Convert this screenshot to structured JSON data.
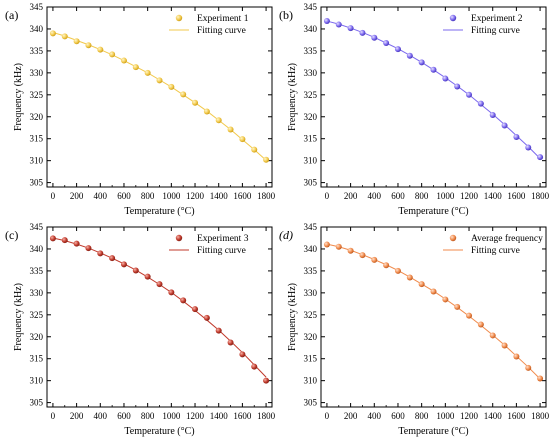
{
  "chart_data": [
    {
      "type": "scatter",
      "panel_label": "(a)",
      "xlabel": "Temperature (°C)",
      "ylabel": "Frequency (kHz)",
      "xlim": [
        -50,
        1850
      ],
      "ylim": [
        304,
        345
      ],
      "xticks": [
        0,
        200,
        400,
        600,
        800,
        1000,
        1200,
        1400,
        1600,
        1800
      ],
      "yticks": [
        305,
        310,
        315,
        320,
        325,
        330,
        335,
        340,
        345
      ],
      "legend_position": "top-right",
      "series": [
        {
          "name": "Experiment 1",
          "kind": "points",
          "color": "#f2c94c",
          "x": [
            0,
            100,
            200,
            300,
            400,
            500,
            600,
            700,
            800,
            900,
            1000,
            1100,
            1200,
            1300,
            1400,
            1500,
            1600,
            1700,
            1800
          ],
          "y": [
            339.0,
            338.3,
            337.2,
            336.3,
            335.3,
            334.2,
            332.8,
            331.3,
            330.0,
            328.3,
            326.8,
            325.1,
            323.2,
            321.2,
            319.2,
            317.1,
            314.9,
            312.5,
            310.2
          ]
        },
        {
          "name": "Fitting curve",
          "kind": "line",
          "color": "#f2c94c",
          "x": [
            0,
            100,
            200,
            300,
            400,
            500,
            600,
            700,
            800,
            900,
            1000,
            1100,
            1200,
            1300,
            1400,
            1500,
            1600,
            1700,
            1800
          ],
          "y": [
            339.2,
            338.4,
            337.4,
            336.4,
            335.3,
            334.1,
            332.8,
            331.4,
            330.0,
            328.4,
            326.8,
            325.0,
            323.2,
            321.3,
            319.2,
            317.1,
            314.8,
            312.5,
            310.1
          ]
        }
      ]
    },
    {
      "type": "scatter",
      "panel_label": "(b)",
      "xlabel": "Temperature (°C)",
      "ylabel": "Frequency (kHz)",
      "xlim": [
        -50,
        1850
      ],
      "ylim": [
        304,
        345
      ],
      "xticks": [
        0,
        200,
        400,
        600,
        800,
        1000,
        1200,
        1400,
        1600,
        1800
      ],
      "yticks": [
        305,
        310,
        315,
        320,
        325,
        330,
        335,
        340,
        345
      ],
      "legend_position": "top-right",
      "series": [
        {
          "name": "Experiment 2",
          "kind": "points",
          "color": "#7b68ee",
          "x": [
            0,
            100,
            200,
            300,
            400,
            500,
            600,
            700,
            800,
            900,
            1000,
            1100,
            1200,
            1300,
            1400,
            1500,
            1600,
            1700,
            1800
          ],
          "y": [
            341.8,
            341.0,
            340.2,
            339.1,
            338.0,
            336.8,
            335.4,
            333.9,
            332.4,
            330.7,
            328.7,
            326.9,
            325.0,
            323.0,
            320.4,
            318.0,
            315.4,
            313.0,
            310.8
          ]
        },
        {
          "name": "Fitting curve",
          "kind": "line",
          "color": "#7b68ee",
          "x": [
            0,
            100,
            200,
            300,
            400,
            500,
            600,
            700,
            800,
            900,
            1000,
            1100,
            1200,
            1300,
            1400,
            1500,
            1600,
            1700,
            1800
          ],
          "y": [
            341.8,
            341.1,
            340.2,
            339.2,
            338.1,
            336.8,
            335.5,
            334.0,
            332.4,
            330.7,
            328.9,
            327.0,
            325.0,
            322.8,
            320.6,
            318.2,
            315.7,
            313.2,
            310.5
          ]
        }
      ]
    },
    {
      "type": "scatter",
      "panel_label": "(c)",
      "xlabel": "Temperature (°C)",
      "ylabel": "Frequency (kHz)",
      "xlim": [
        -50,
        1850
      ],
      "ylim": [
        304,
        345
      ],
      "xticks": [
        0,
        200,
        400,
        600,
        800,
        1000,
        1200,
        1400,
        1600,
        1800
      ],
      "yticks": [
        305,
        310,
        315,
        320,
        325,
        330,
        335,
        340,
        345
      ],
      "legend_position": "top-right",
      "series": [
        {
          "name": "Experiment 3",
          "kind": "points",
          "color": "#c0392b",
          "x": [
            0,
            100,
            200,
            300,
            400,
            500,
            600,
            700,
            800,
            900,
            1000,
            1100,
            1200,
            1300,
            1400,
            1500,
            1600,
            1700,
            1800
          ],
          "y": [
            342.4,
            342.0,
            341.2,
            340.2,
            339.0,
            337.9,
            336.5,
            335.1,
            333.7,
            332.0,
            330.1,
            328.3,
            326.3,
            324.3,
            321.4,
            318.7,
            316.0,
            313.2,
            310.0
          ]
        },
        {
          "name": "Fitting curve",
          "kind": "line",
          "color": "#c0392b",
          "x": [
            0,
            100,
            200,
            300,
            400,
            500,
            600,
            700,
            800,
            900,
            1000,
            1100,
            1200,
            1300,
            1400,
            1500,
            1600,
            1700,
            1800
          ],
          "y": [
            342.5,
            341.9,
            341.1,
            340.2,
            339.1,
            337.9,
            336.6,
            335.2,
            333.6,
            331.9,
            330.1,
            328.1,
            326.0,
            323.8,
            321.5,
            319.0,
            316.4,
            313.6,
            310.8
          ]
        }
      ]
    },
    {
      "type": "scatter",
      "panel_label": "(d)",
      "xlabel": "Temperature (°C)",
      "ylabel": "Frequency (kHz)",
      "xlim": [
        -50,
        1850
      ],
      "ylim": [
        304,
        345
      ],
      "xticks": [
        0,
        200,
        400,
        600,
        800,
        1000,
        1200,
        1400,
        1600,
        1800
      ],
      "yticks": [
        305,
        310,
        315,
        320,
        325,
        330,
        335,
        340,
        345
      ],
      "legend_position": "top-right",
      "series": [
        {
          "name": "Average frequency",
          "kind": "points",
          "color": "#f08a4b",
          "x": [
            0,
            100,
            200,
            300,
            400,
            500,
            600,
            700,
            800,
            900,
            1000,
            1100,
            1200,
            1300,
            1400,
            1500,
            1600,
            1700,
            1800
          ],
          "y": [
            341.0,
            340.5,
            339.6,
            338.6,
            337.5,
            336.3,
            335.0,
            333.5,
            332.0,
            330.3,
            328.5,
            326.8,
            324.8,
            322.8,
            320.3,
            318.0,
            315.5,
            312.9,
            310.5
          ]
        },
        {
          "name": "Fitting curve",
          "kind": "line",
          "color": "#f08a4b",
          "x": [
            0,
            100,
            200,
            300,
            400,
            500,
            600,
            700,
            800,
            900,
            1000,
            1100,
            1200,
            1300,
            1400,
            1500,
            1600,
            1700,
            1800
          ],
          "y": [
            341.1,
            340.5,
            339.7,
            338.7,
            337.6,
            336.4,
            335.1,
            333.6,
            332.0,
            330.4,
            328.6,
            326.7,
            324.7,
            322.6,
            320.4,
            318.1,
            315.6,
            313.1,
            310.4
          ]
        }
      ]
    }
  ]
}
